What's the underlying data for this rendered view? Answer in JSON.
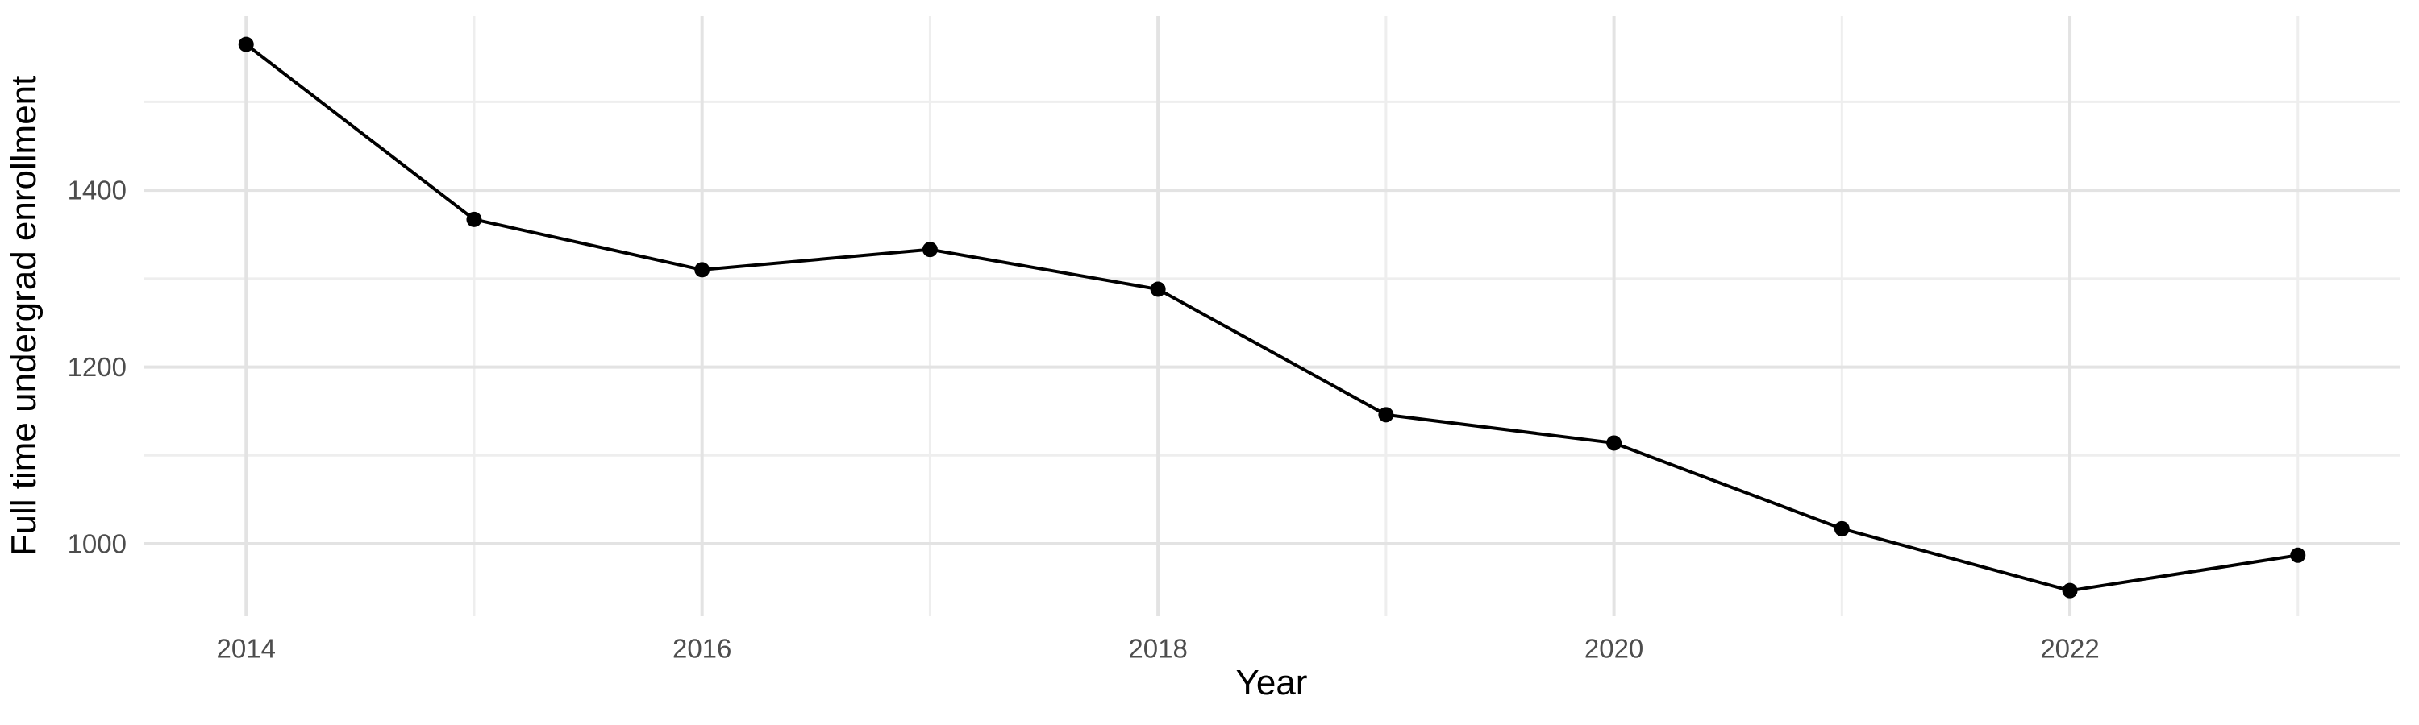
{
  "figure": {
    "background": "#ffffff"
  },
  "chart_data": {
    "type": "line",
    "title": "",
    "xlabel": "Year",
    "ylabel": "Full time undergrad enrollment",
    "x": [
      2014,
      2015,
      2016,
      2017,
      2018,
      2019,
      2020,
      2021,
      2022,
      2023
    ],
    "series": [
      {
        "name": "Full time undergrad enrollment",
        "values": [
          1565,
          1367,
          1310,
          1333,
          1288,
          1146,
          1114,
          1017,
          947,
          987
        ]
      }
    ],
    "x_ticks_major": [
      2014,
      2016,
      2018,
      2020,
      2022
    ],
    "x_ticks_minor": [
      2015,
      2017,
      2019,
      2021,
      2023
    ],
    "y_ticks_major": [
      1000,
      1200,
      1400
    ],
    "y_ticks_minor": [
      1100,
      1300,
      1500
    ],
    "xlim": [
      2013.55,
      2023.45
    ],
    "ylim": [
      918,
      1597
    ],
    "grid": "on",
    "legend": "none",
    "line_color": "#000000",
    "point_color": "#000000",
    "grid_major_color": "#e3e3e3",
    "grid_minor_color": "#eeeeee",
    "tick_label_color": "#4d4d4d",
    "axis_title_color": "#000000"
  }
}
